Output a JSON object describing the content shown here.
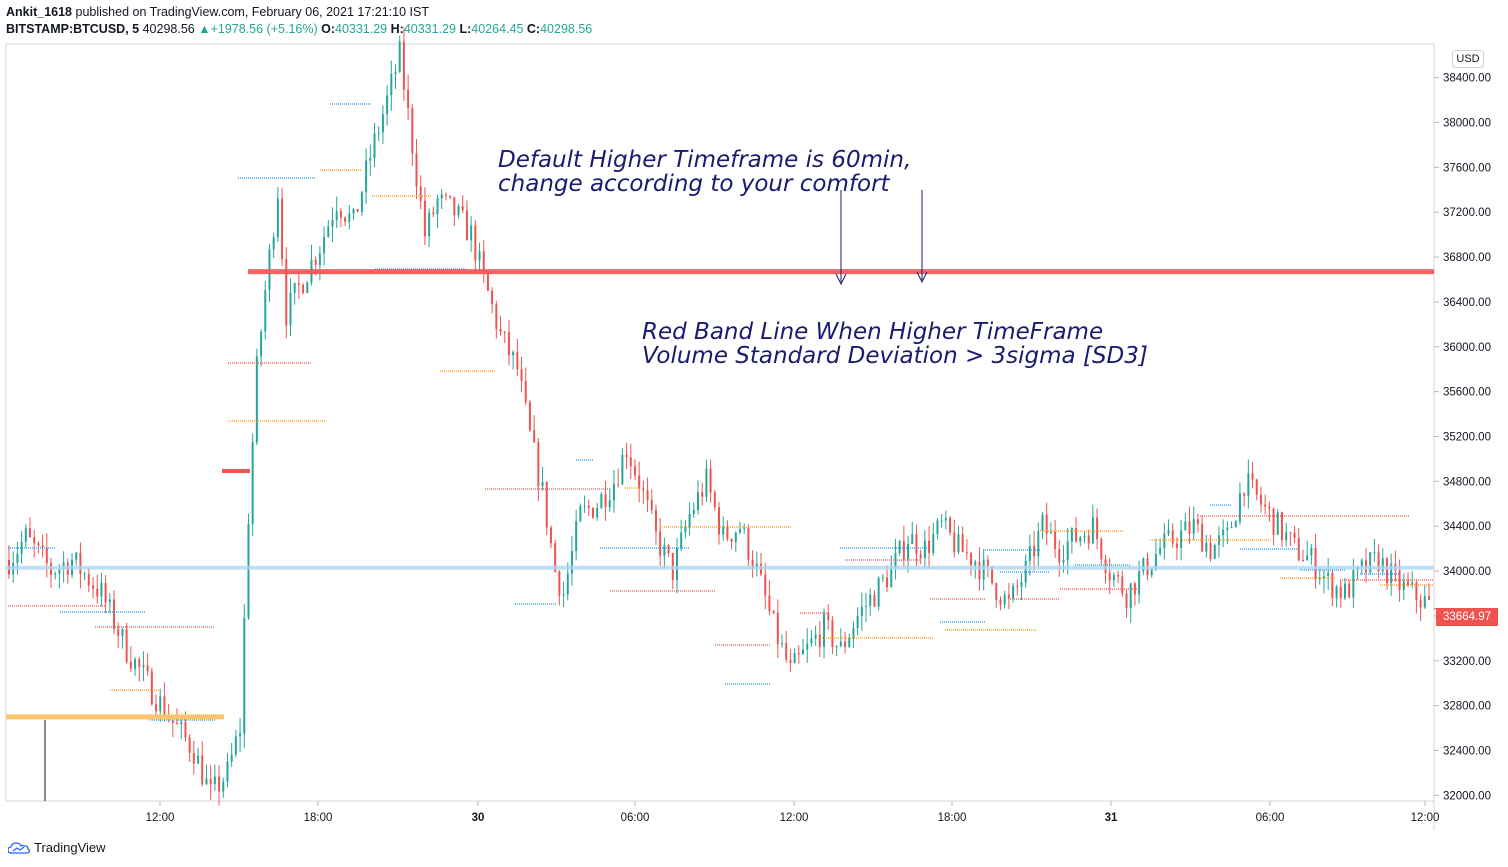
{
  "header": {
    "author": "Ankit_1618",
    "published_text": "published on TradingView.com, February 06, 2021 17:21:10 IST",
    "symbol": "BITSTAMP:BTCUSD, 5",
    "last": "40298.56",
    "change": "+1978.56 (+5.16%)",
    "o_label": "O:",
    "o": "40331.29",
    "h_label": "H:",
    "h": "40331.29",
    "l_label": "L:",
    "l": "40264.45",
    "c_label": "C:",
    "c": "40298.56"
  },
  "currency": "USD",
  "current_price": "33664.97",
  "branding": "TradingView",
  "annotations": {
    "note1_line1": "Default Higher Timeframe is 60min,",
    "note1_line2": "change according to your comfort",
    "note2_line1": "Red Band Line When Higher TimeFrame",
    "note2_line2": "Volume Standard Deviation > 3sigma [SD3]"
  },
  "chart_data": {
    "type": "candlestick",
    "title": "",
    "xlabel": "",
    "ylabel": "",
    "ylim": [
      31950,
      38700
    ],
    "y_ticks": [
      "32000.00",
      "32400.00",
      "32800.00",
      "33200.00",
      "33600.00",
      "34000.00",
      "34400.00",
      "34800.00",
      "35200.00",
      "35600.00",
      "36000.00",
      "36400.00",
      "36800.00",
      "37200.00",
      "37600.00",
      "38000.00",
      "38400.00"
    ],
    "x_ticks": [
      {
        "label": "12:00",
        "bold": false
      },
      {
        "label": "18:00",
        "bold": false
      },
      {
        "label": "30",
        "bold": true
      },
      {
        "label": "06:00",
        "bold": false
      },
      {
        "label": "12:00",
        "bold": false
      },
      {
        "label": "18:00",
        "bold": false
      },
      {
        "label": "31",
        "bold": true
      },
      {
        "label": "06:00",
        "bold": false
      },
      {
        "label": "12:00",
        "bold": false
      }
    ],
    "up_color": "#26a69a",
    "down_color": "#ef5350",
    "red_band_level": 36670,
    "light_band_level": 34030,
    "orange_band_level": 32700,
    "current_price": 33664.97,
    "price_path": [
      [
        0,
        34100
      ],
      [
        4,
        34300
      ],
      [
        10,
        34000
      ],
      [
        15,
        34100
      ],
      [
        22,
        33800
      ],
      [
        28,
        33300
      ],
      [
        33,
        33000
      ],
      [
        38,
        32700
      ],
      [
        44,
        32400
      ],
      [
        48,
        32000
      ],
      [
        52,
        32200
      ],
      [
        55,
        32600
      ],
      [
        57,
        34500
      ],
      [
        59,
        35800
      ],
      [
        61,
        36500
      ],
      [
        64,
        37400
      ],
      [
        66,
        36300
      ],
      [
        70,
        36600
      ],
      [
        74,
        36900
      ],
      [
        78,
        37300
      ],
      [
        82,
        37100
      ],
      [
        86,
        37700
      ],
      [
        90,
        38200
      ],
      [
        93,
        38600
      ],
      [
        96,
        37800
      ],
      [
        99,
        37000
      ],
      [
        102,
        37300
      ],
      [
        106,
        37200
      ],
      [
        110,
        37000
      ],
      [
        113,
        36600
      ],
      [
        117,
        36100
      ],
      [
        121,
        35800
      ],
      [
        124,
        35200
      ],
      [
        127,
        34700
      ],
      [
        130,
        34000
      ],
      [
        132,
        33800
      ],
      [
        136,
        34500
      ],
      [
        140,
        34600
      ],
      [
        144,
        34800
      ],
      [
        147,
        35100
      ],
      [
        150,
        34800
      ],
      [
        154,
        34300
      ],
      [
        158,
        34000
      ],
      [
        162,
        34500
      ],
      [
        166,
        34800
      ],
      [
        170,
        34300
      ],
      [
        174,
        34400
      ],
      [
        178,
        34000
      ],
      [
        182,
        33500
      ],
      [
        186,
        33100
      ],
      [
        190,
        33300
      ],
      [
        194,
        33500
      ],
      [
        198,
        33300
      ],
      [
        202,
        33600
      ],
      [
        206,
        33800
      ],
      [
        210,
        34000
      ],
      [
        214,
        34300
      ],
      [
        218,
        34200
      ],
      [
        222,
        34400
      ],
      [
        226,
        34200
      ],
      [
        230,
        34100
      ],
      [
        234,
        33900
      ],
      [
        238,
        33700
      ],
      [
        242,
        34000
      ],
      [
        246,
        34400
      ],
      [
        250,
        34200
      ],
      [
        254,
        34300
      ],
      [
        258,
        34400
      ],
      [
        262,
        34000
      ],
      [
        266,
        33800
      ],
      [
        270,
        34000
      ],
      [
        274,
        34200
      ],
      [
        278,
        34300
      ],
      [
        282,
        34400
      ],
      [
        286,
        34200
      ],
      [
        290,
        34300
      ],
      [
        294,
        34800
      ],
      [
        298,
        34600
      ],
      [
        302,
        34400
      ],
      [
        306,
        34200
      ],
      [
        310,
        34100
      ],
      [
        314,
        33900
      ],
      [
        318,
        33800
      ],
      [
        322,
        34000
      ],
      [
        326,
        34100
      ],
      [
        330,
        33900
      ],
      [
        334,
        33800
      ],
      [
        338,
        33700
      ]
    ]
  }
}
